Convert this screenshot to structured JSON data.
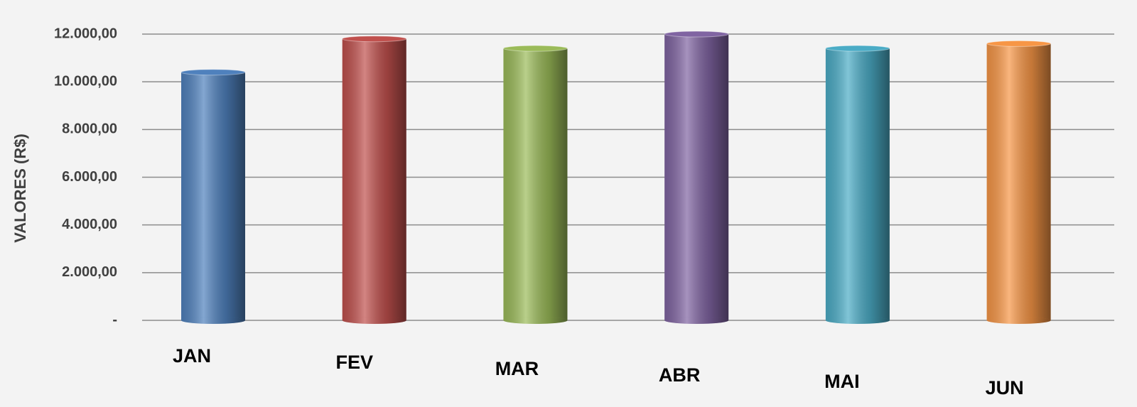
{
  "chart_data": {
    "type": "bar",
    "y_label": "VALORES (R$)",
    "categories": [
      "JAN",
      "FEV",
      "MAR",
      "ABR",
      "MAI",
      "JUN"
    ],
    "values": [
      10400,
      11800,
      11400,
      12000,
      11400,
      11600
    ],
    "colors": [
      "#4f81bd",
      "#c0504d",
      "#9bbb59",
      "#8064a2",
      "#4bacc6",
      "#f79646"
    ],
    "ylim": [
      0,
      12000
    ],
    "yticks": [
      {
        "value": 0,
        "label": "-"
      },
      {
        "value": 2000,
        "label": "2.000,00"
      },
      {
        "value": 4000,
        "label": "4.000,00"
      },
      {
        "value": 6000,
        "label": "6.000,00"
      },
      {
        "value": 8000,
        "label": "8.000,00"
      },
      {
        "value": 10000,
        "label": "10.000,00"
      },
      {
        "value": 12000,
        "label": "12.000,00"
      }
    ],
    "grid": true
  }
}
